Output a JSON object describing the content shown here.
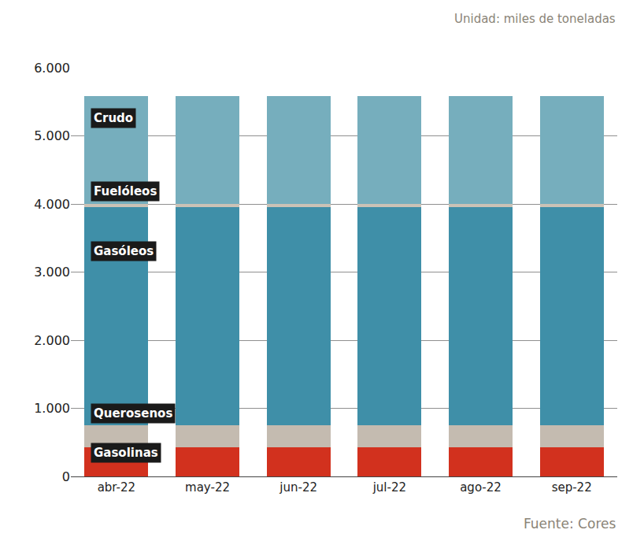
{
  "chart_data": {
    "type": "bar",
    "stacked": true,
    "grid": true,
    "categories": [
      "abr-22",
      "may-22",
      "jun-22",
      "jul-22",
      "ago-22",
      "sep-22"
    ],
    "series": [
      {
        "name": "Gasolinas",
        "color": "#d2311e",
        "values": [
          430,
          430,
          430,
          430,
          430,
          430
        ]
      },
      {
        "name": "Querosenos",
        "color": "#c4bbb0",
        "values": [
          320,
          320,
          320,
          320,
          320,
          320
        ]
      },
      {
        "name": "Gasóleos",
        "color": "#3f8fa8",
        "values": [
          3200,
          3200,
          3200,
          3200,
          3200,
          3200
        ]
      },
      {
        "name": "Fuelóleos",
        "color": "#cbc2b6",
        "values": [
          50,
          50,
          50,
          50,
          50,
          50
        ]
      },
      {
        "name": "Crudo",
        "color": "#76aebd",
        "values": [
          1580,
          1580,
          1580,
          1580,
          1580,
          1580
        ]
      }
    ],
    "ylim": [
      0,
      6000
    ],
    "yticks": [
      0,
      {
        "value": 1000,
        "label": "1.000"
      },
      {
        "value": 2000,
        "label": "2.000"
      },
      {
        "value": 3000,
        "label": "3.000"
      },
      {
        "value": 4000,
        "label": "4.000"
      },
      {
        "value": 5000,
        "label": "5.000"
      },
      {
        "value": 6000,
        "label": "6.000"
      }
    ],
    "annotations": [
      "Unidad: miles de toneladas",
      "Fuente: Cores"
    ]
  }
}
